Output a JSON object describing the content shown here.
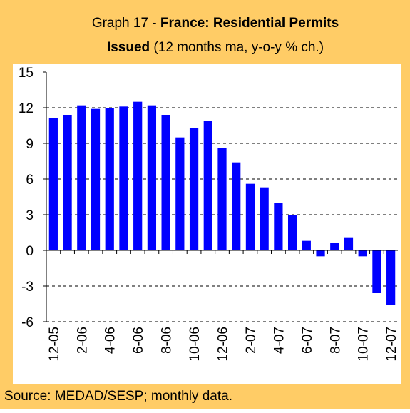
{
  "chart_data": {
    "type": "bar",
    "title_parts": [
      "Graph 17 - ",
      "France: Residential Permits",
      "Issued",
      " (12 months ma, y-o-y % ch.)"
    ],
    "source": "Source: MEDAD/SESP; monthly data.",
    "categories": [
      "12-05",
      null,
      "2-06",
      null,
      "4-06",
      null,
      "6-06",
      null,
      "8-06",
      null,
      "10-06",
      null,
      "12-06",
      null,
      "2-07",
      null,
      "4-07",
      null,
      "6-07",
      null,
      "8-07",
      null,
      "10-07",
      null,
      "12-07"
    ],
    "values": [
      11.1,
      11.4,
      12.2,
      11.9,
      12.0,
      12.1,
      12.5,
      12.2,
      11.4,
      9.5,
      10.3,
      10.9,
      8.6,
      7.4,
      5.6,
      5.3,
      4.0,
      3.0,
      0.8,
      -0.5,
      0.6,
      1.1,
      -0.5,
      -3.6,
      -4.6
    ],
    "color": "#0000ff",
    "ylim": [
      -6,
      15
    ],
    "yticks": [
      -6,
      -3,
      0,
      3,
      6,
      9,
      12,
      15
    ],
    "grid": true
  }
}
